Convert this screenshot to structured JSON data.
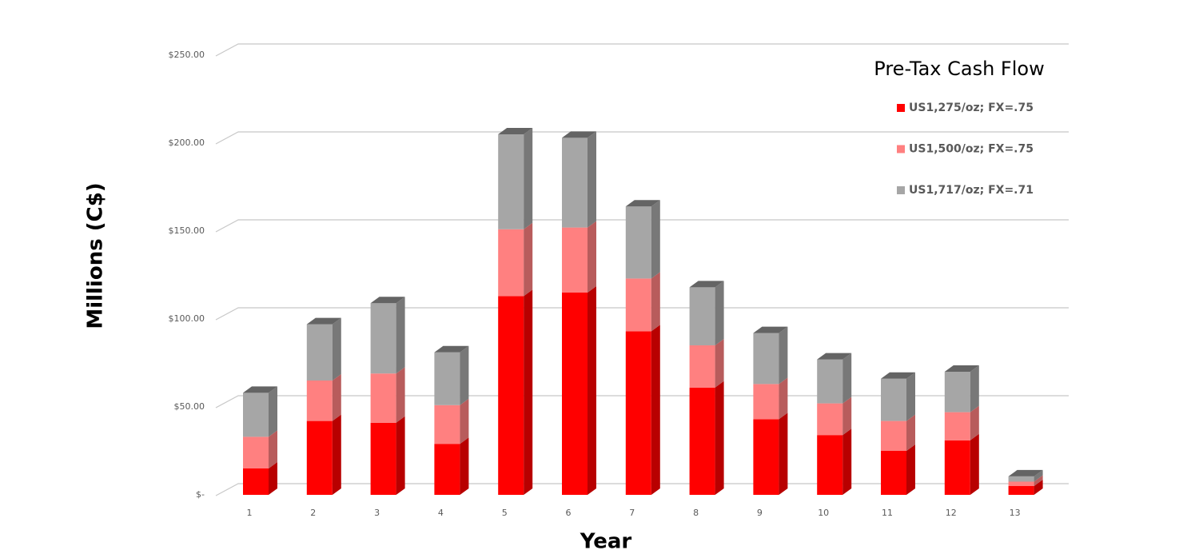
{
  "chart_data": {
    "type": "bar3d",
    "stacked": true,
    "title": "Pre-Tax Cash Flow",
    "x_label": "Year",
    "y_label": "Millions (C$)",
    "categories": [
      "1",
      "2",
      "3",
      "4",
      "5",
      "6",
      "7",
      "8",
      "9",
      "10",
      "11",
      "12",
      "13"
    ],
    "series": [
      {
        "name": "US1,275/oz; FX=.75",
        "color": "#ff0000",
        "values": [
          15,
          42,
          41,
          29,
          113,
          115,
          93,
          61,
          43,
          34,
          25,
          31,
          5
        ]
      },
      {
        "name": "US1,500/oz; FX=.75",
        "color": "#ff8080",
        "values": [
          18,
          23,
          28,
          22,
          38,
          37,
          30,
          24,
          20,
          18,
          17,
          16,
          2.5
        ]
      },
      {
        "name": "US1,717/oz; FX=.71",
        "color": "#a6a6a6",
        "values": [
          25,
          32,
          40,
          30,
          54,
          51,
          41,
          33,
          29,
          25,
          24,
          23,
          3
        ]
      }
    ],
    "ylim": [
      0,
      250
    ],
    "yticks": [
      {
        "value": 0,
        "label": "$-"
      },
      {
        "value": 50,
        "label": "$50.00"
      },
      {
        "value": 100,
        "label": "$100.00"
      },
      {
        "value": 150,
        "label": "$150.00"
      },
      {
        "value": 200,
        "label": "$200.00"
      },
      {
        "value": 250,
        "label": "$250.00"
      }
    ],
    "grid": true,
    "legend": "upper right"
  }
}
